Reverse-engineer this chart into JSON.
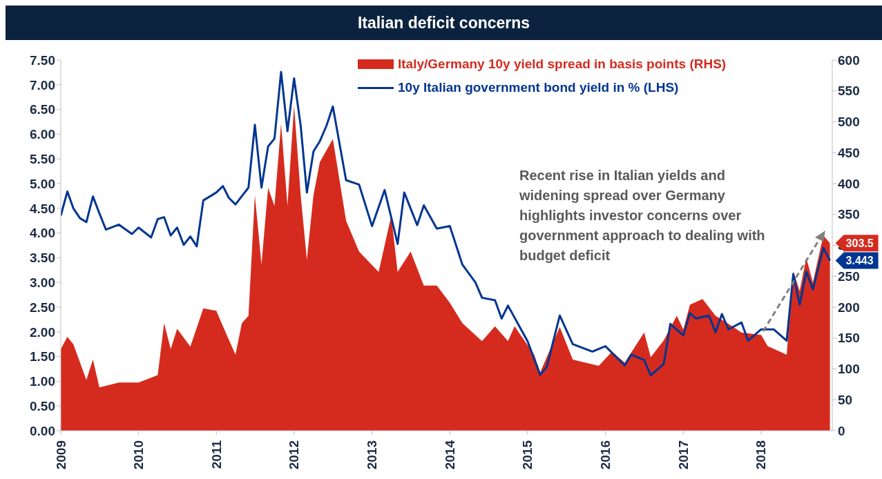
{
  "chart_data": {
    "type": "area",
    "title": "Italian deficit concerns",
    "annotations": [
      "Recent rise in Italian yields and widening spread over Germany highlights investor concerns over government approach to dealing with budget deficit"
    ],
    "legend": "top right",
    "xlim": [
      "2009-01-01",
      "2018-12-01"
    ],
    "xticks": [
      "2009",
      "2010",
      "2011",
      "2012",
      "2013",
      "2014",
      "2015",
      "2016",
      "2017",
      "2018"
    ],
    "ylim": [
      0,
      7.5
    ],
    "yticks": [
      {
        "value": 0,
        "label": "0.00"
      },
      {
        "value": 0.5,
        "label": "0.50"
      },
      {
        "value": 1,
        "label": "1.00"
      },
      {
        "value": 1.5,
        "label": "1.50"
      },
      {
        "value": 2,
        "label": "2.00"
      },
      {
        "value": 2.5,
        "label": "2.50"
      },
      {
        "value": 3,
        "label": "3.00"
      },
      {
        "value": 3.5,
        "label": "3.50"
      },
      {
        "value": 4,
        "label": "4.00"
      },
      {
        "value": 4.5,
        "label": "4.50"
      },
      {
        "value": 5,
        "label": "5.00"
      },
      {
        "value": 5.5,
        "label": "5.50"
      },
      {
        "value": 6,
        "label": "6.00"
      },
      {
        "value": 6.5,
        "label": "6.50"
      },
      {
        "value": 7,
        "label": "7.00"
      },
      {
        "value": 7.5,
        "label": "7.50"
      }
    ],
    "y2lim": [
      0,
      600
    ],
    "y2ticks": [
      0,
      50,
      100,
      150,
      200,
      250,
      300,
      350,
      400,
      450,
      500,
      550,
      600
    ],
    "series": [
      {
        "name": "Italy/Germany 10y yield spread in basis points (RHS)",
        "axis": "y2",
        "color": "#d52b1e",
        "x": [
          "2009-01",
          "2009-02",
          "2009-03",
          "2009-05",
          "2009-06",
          "2009-07",
          "2009-10",
          "2010-01",
          "2010-04",
          "2010-05",
          "2010-06",
          "2010-07",
          "2010-09",
          "2010-11",
          "2011-01",
          "2011-02",
          "2011-04",
          "2011-05",
          "2011-06",
          "2011-07",
          "2011-08",
          "2011-09",
          "2011-10",
          "2011-11",
          "2011-12",
          "2012-01",
          "2012-02",
          "2012-03",
          "2012-04",
          "2012-05",
          "2012-07",
          "2012-09",
          "2012-11",
          "2013-02",
          "2013-04",
          "2013-05",
          "2013-07",
          "2013-09",
          "2013-11",
          "2014-01",
          "2014-03",
          "2014-06",
          "2014-08",
          "2014-10",
          "2014-11",
          "2015-02",
          "2015-03",
          "2015-06",
          "2015-08",
          "2015-12",
          "2016-02",
          "2016-04",
          "2016-07",
          "2016-08",
          "2016-10",
          "2016-12",
          "2017-01",
          "2017-02",
          "2017-04",
          "2017-06",
          "2017-08",
          "2017-10",
          "2018-01",
          "2018-02",
          "2018-05",
          "2018-06",
          "2018-07",
          "2018-08",
          "2018-09",
          "2018-10-20",
          "2018-11-20"
        ],
        "values": [
          132,
          152,
          140,
          82,
          115,
          70,
          78,
          78,
          90,
          174,
          132,
          165,
          136,
          198,
          194,
          169,
          123,
          174,
          186,
          381,
          269,
          393,
          364,
          497,
          364,
          526,
          381,
          277,
          381,
          435,
          472,
          340,
          290,
          257,
          348,
          257,
          290,
          235,
          235,
          207,
          174,
          145,
          169,
          145,
          169,
          123,
          94,
          168,
          115,
          105,
          128,
          110,
          159,
          119,
          146,
          186,
          164,
          204,
          213,
          186,
          173,
          159,
          155,
          137,
          123,
          258,
          226,
          280,
          240,
          316,
          303.5
        ],
        "value_labels": [
          null,
          null,
          null,
          null,
          null,
          null,
          null,
          null,
          null,
          null,
          null,
          null,
          null,
          null,
          null,
          null,
          null,
          null,
          null,
          null,
          null,
          null,
          null,
          null,
          null,
          null,
          null,
          null,
          null,
          null,
          null,
          null,
          null,
          null,
          null,
          null,
          null,
          null,
          null,
          null,
          null,
          null,
          null,
          null,
          null,
          null,
          null,
          null,
          null,
          null,
          null,
          null,
          null,
          null,
          null,
          null,
          null,
          null,
          null,
          null,
          null,
          null,
          null,
          null,
          null,
          null,
          null,
          null,
          null,
          null,
          "303.5"
        ]
      },
      {
        "name": "10y Italian government bond yield in % (LHS)",
        "type": "line",
        "axis": "y",
        "color": "#003591",
        "x": [
          "2009-01",
          "2009-02",
          "2009-03",
          "2009-04",
          "2009-05",
          "2009-06",
          "2009-07",
          "2009-08",
          "2009-10",
          "2009-12",
          "2010-01",
          "2010-03",
          "2010-04",
          "2010-05",
          "2010-06",
          "2010-07",
          "2010-08",
          "2010-09",
          "2010-10",
          "2010-11",
          "2011-01",
          "2011-02",
          "2011-03",
          "2011-04",
          "2011-06",
          "2011-07",
          "2011-08",
          "2011-09",
          "2011-10",
          "2011-11",
          "2011-12",
          "2012-01",
          "2012-02",
          "2012-03",
          "2012-04",
          "2012-05",
          "2012-06",
          "2012-07",
          "2012-09",
          "2012-11",
          "2013-01",
          "2013-03",
          "2013-05",
          "2013-06",
          "2013-08",
          "2013-09",
          "2013-11",
          "2014-01",
          "2014-03",
          "2014-05",
          "2014-06",
          "2014-08",
          "2014-09",
          "2014-10",
          "2015-01",
          "2015-03",
          "2015-04",
          "2015-06",
          "2015-08",
          "2015-11",
          "2016-01",
          "2016-04",
          "2016-05",
          "2016-07",
          "2016-08",
          "2016-10",
          "2016-11",
          "2017-01",
          "2017-02",
          "2017-03",
          "2017-05",
          "2017-06",
          "2017-07",
          "2017-08",
          "2017-10",
          "2017-11",
          "2018-01",
          "2018-03",
          "2018-05",
          "2018-06",
          "2018-07",
          "2018-08",
          "2018-09",
          "2018-10-20",
          "2018-11-20"
        ],
        "values": [
          4.35,
          4.84,
          4.5,
          4.3,
          4.22,
          4.74,
          4.4,
          4.07,
          4.17,
          3.98,
          4.11,
          3.91,
          4.28,
          4.32,
          3.95,
          4.11,
          3.76,
          3.93,
          3.73,
          4.66,
          4.82,
          4.95,
          4.71,
          4.58,
          4.92,
          6.19,
          4.92,
          5.75,
          5.91,
          7.26,
          6.06,
          7.13,
          6.17,
          4.82,
          5.65,
          5.86,
          6.17,
          6.56,
          5.07,
          4.98,
          4.14,
          4.87,
          3.78,
          4.82,
          4.16,
          4.56,
          4.09,
          4.14,
          3.36,
          3.0,
          2.69,
          2.64,
          2.27,
          2.53,
          1.81,
          1.13,
          1.29,
          2.33,
          1.75,
          1.6,
          1.71,
          1.32,
          1.54,
          1.43,
          1.12,
          1.35,
          2.16,
          1.93,
          2.38,
          2.27,
          2.33,
          1.99,
          2.36,
          2.05,
          2.19,
          1.82,
          2.05,
          2.05,
          1.82,
          3.17,
          2.55,
          3.22,
          2.86,
          3.7,
          3.443
        ],
        "value_labels": [
          null,
          null,
          null,
          null,
          null,
          null,
          null,
          null,
          null,
          null,
          null,
          null,
          null,
          null,
          null,
          null,
          null,
          null,
          null,
          null,
          null,
          null,
          null,
          null,
          null,
          null,
          null,
          null,
          null,
          null,
          null,
          null,
          null,
          null,
          null,
          null,
          null,
          null,
          null,
          null,
          null,
          null,
          null,
          null,
          null,
          null,
          null,
          null,
          null,
          null,
          null,
          null,
          null,
          null,
          null,
          null,
          null,
          null,
          null,
          null,
          null,
          null,
          null,
          null,
          null,
          null,
          null,
          null,
          null,
          null,
          null,
          null,
          null,
          null,
          null,
          null,
          null,
          null,
          null,
          null,
          null,
          null,
          null,
          null,
          "3.443"
        ]
      }
    ]
  }
}
